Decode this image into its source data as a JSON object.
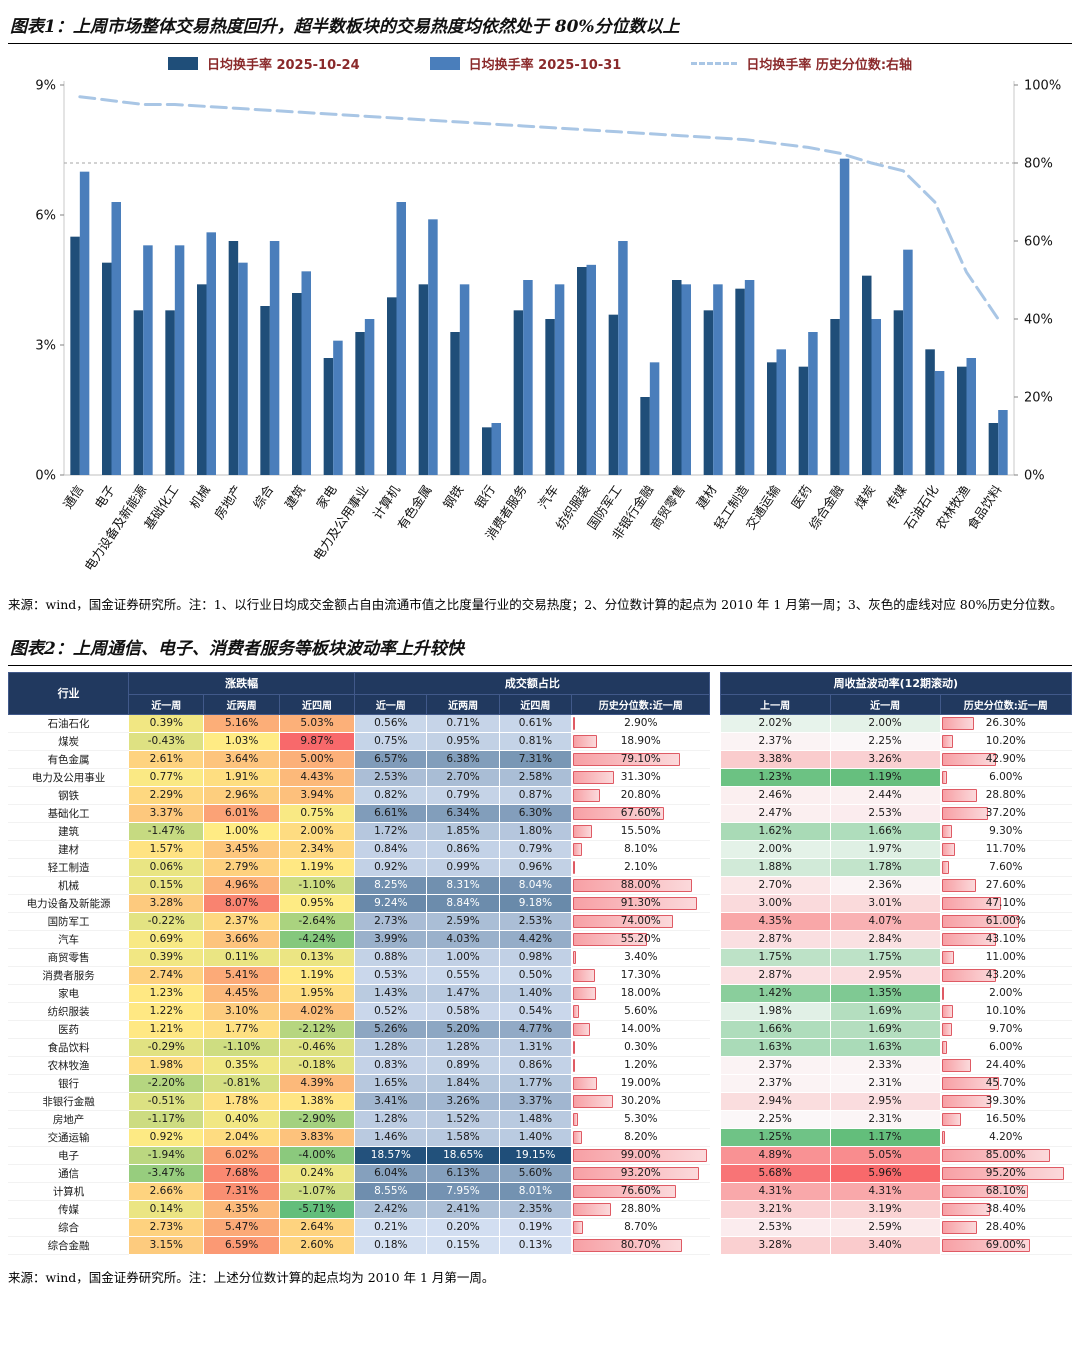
{
  "page": {
    "title1": "图表1：上周市场整体交易热度回升，超半数板块的交易热度均依然处于 80%分位数以上",
    "note1": "来源：wind，国金证券研究所。注：1、以行业日均成交金额占自由流通市值之比度量行业的交易热度；2、分位数计算的起点为 2010 年 1 月第一周；3、灰色的虚线对应 80%历史分位数。",
    "title2": "图表2：上周通信、电子、消费者服务等板块波动率上升较快",
    "note2": "来源：wind，国金证券研究所。注：上述分位数计算的起点均为 2010 年 1 月第一周。"
  },
  "colors": {
    "bar_2025_10_24": "#1F4E79",
    "bar_2025_10_31": "#4A7EBB",
    "percentile_line": "#A9C6E5",
    "reference_line": "#A6A6A6",
    "header_bg": "#21395F",
    "heat_green": "#63BE7B",
    "heat_yellow": "#FFEB84",
    "heat_red": "#F8696B",
    "heat_white": "#FBFBFC",
    "share_blue_light": "#D6E1F3",
    "share_blue_dark": "#1F4E79",
    "databar_border": "#DF5A64",
    "databar_fill": "#F7A0A5"
  },
  "chart_data": [
    {
      "type": "bar",
      "title": "上周市场整体交易热度回升",
      "categories": [
        "通信",
        "电子",
        "电力设备及新能源",
        "基础化工",
        "机械",
        "房地产",
        "综合",
        "建筑",
        "家电",
        "电力及公用事业",
        "计算机",
        "有色金属",
        "钢铁",
        "银行",
        "消费者服务",
        "汽车",
        "纺织服装",
        "国防军工",
        "非银行金融",
        "商贸零售",
        "建材",
        "轻工制造",
        "交通运输",
        "医药",
        "综合金融",
        "煤炭",
        "传媒",
        "石油石化",
        "农林牧渔",
        "食品饮料"
      ],
      "series": [
        {
          "name": "日均换手率 2025-10-24",
          "type": "bar",
          "axis": "left",
          "color": "#1F4E79",
          "values": [
            5.5,
            4.9,
            3.8,
            3.8,
            4.4,
            5.4,
            3.9,
            4.2,
            2.7,
            3.3,
            4.1,
            4.4,
            3.3,
            1.1,
            3.8,
            3.6,
            4.8,
            3.7,
            1.8,
            4.5,
            3.8,
            4.3,
            2.6,
            2.5,
            3.6,
            4.6,
            3.8,
            2.9,
            2.5,
            1.2
          ]
        },
        {
          "name": "日均换手率 2025-10-31",
          "type": "bar",
          "axis": "left",
          "color": "#4A7EBB",
          "values": [
            7.0,
            6.3,
            5.3,
            5.3,
            5.6,
            4.9,
            5.4,
            4.7,
            3.1,
            3.6,
            6.3,
            5.9,
            4.4,
            1.2,
            4.5,
            4.4,
            4.85,
            5.4,
            2.6,
            4.4,
            4.4,
            4.5,
            2.9,
            3.3,
            7.3,
            3.6,
            5.2,
            2.4,
            2.7,
            1.5
          ]
        },
        {
          "name": "日均换手率 历史分位数:右轴",
          "type": "dashed-line",
          "axis": "right",
          "color": "#A9C6E5",
          "values": [
            97,
            96,
            95,
            95,
            94.5,
            94,
            93.5,
            93,
            92.5,
            92,
            91.5,
            91,
            90.5,
            90,
            89.5,
            89,
            88.5,
            88,
            87.5,
            87,
            86.5,
            86,
            85,
            84,
            82.5,
            80,
            78,
            70,
            52,
            40
          ]
        }
      ],
      "left_axis": {
        "min": 0,
        "max": 9,
        "tick_values": [
          0,
          3,
          6,
          9
        ],
        "tick_labels": [
          "0%",
          "3%",
          "6%",
          "9%"
        ]
      },
      "right_axis": {
        "min": 0,
        "max": 100,
        "tick_values": [
          0,
          20,
          40,
          60,
          80,
          100
        ],
        "tick_labels": [
          "0%",
          "20%",
          "40%",
          "60%",
          "80%",
          "100%"
        ]
      },
      "reference_line": {
        "axis": "right",
        "value": 80
      },
      "legend_position": "top",
      "grid": false
    }
  ],
  "table": {
    "header": {
      "industry": "行业",
      "groups": [
        "涨跌幅",
        "成交额占比",
        "周收益波动率(12期滚动)"
      ],
      "sub": [
        "近一周",
        "近两周",
        "近四周",
        "近一周",
        "近两周",
        "近四周",
        "历史分位数:近一周",
        "上一周",
        "近一周",
        "历史分位数:近一周"
      ]
    },
    "rows": [
      {
        "industry": "石油石化",
        "chg": [
          0.39,
          5.16,
          5.03
        ],
        "share": [
          0.56,
          0.71,
          0.61
        ],
        "share_pct": 2.9,
        "vol": [
          2.02,
          2.0
        ],
        "vol_pct": 26.3
      },
      {
        "industry": "煤炭",
        "chg": [
          -0.43,
          1.03,
          9.87
        ],
        "share": [
          0.75,
          0.95,
          0.81
        ],
        "share_pct": 18.9,
        "vol": [
          2.37,
          2.25
        ],
        "vol_pct": 10.2
      },
      {
        "industry": "有色金属",
        "chg": [
          2.61,
          3.64,
          5.0
        ],
        "share": [
          6.57,
          6.38,
          7.31
        ],
        "share_pct": 79.1,
        "vol": [
          3.38,
          3.26
        ],
        "vol_pct": 42.9
      },
      {
        "industry": "电力及公用事业",
        "chg": [
          0.77,
          1.91,
          4.43
        ],
        "share": [
          2.53,
          2.7,
          2.58
        ],
        "share_pct": 31.3,
        "vol": [
          1.23,
          1.19
        ],
        "vol_pct": 6.0
      },
      {
        "industry": "钢铁",
        "chg": [
          2.29,
          2.96,
          3.94
        ],
        "share": [
          0.82,
          0.79,
          0.87
        ],
        "share_pct": 20.8,
        "vol": [
          2.46,
          2.44
        ],
        "vol_pct": 28.8
      },
      {
        "industry": "基础化工",
        "chg": [
          3.37,
          6.01,
          0.75
        ],
        "share": [
          6.61,
          6.34,
          6.3
        ],
        "share_pct": 67.6,
        "vol": [
          2.47,
          2.53
        ],
        "vol_pct": 37.2
      },
      {
        "industry": "建筑",
        "chg": [
          -1.47,
          1.0,
          2.0
        ],
        "share": [
          1.72,
          1.85,
          1.8
        ],
        "share_pct": 15.5,
        "vol": [
          1.62,
          1.66
        ],
        "vol_pct": 9.3
      },
      {
        "industry": "建材",
        "chg": [
          1.57,
          3.45,
          2.34
        ],
        "share": [
          0.84,
          0.86,
          0.79
        ],
        "share_pct": 8.1,
        "vol": [
          2.0,
          1.97
        ],
        "vol_pct": 11.7
      },
      {
        "industry": "轻工制造",
        "chg": [
          0.06,
          2.79,
          1.19
        ],
        "share": [
          0.92,
          0.99,
          0.96
        ],
        "share_pct": 2.1,
        "vol": [
          1.88,
          1.78
        ],
        "vol_pct": 7.6
      },
      {
        "industry": "机械",
        "chg": [
          0.15,
          4.96,
          -1.1
        ],
        "share": [
          8.25,
          8.31,
          8.04
        ],
        "share_pct": 88.0,
        "vol": [
          2.7,
          2.36
        ],
        "vol_pct": 27.6
      },
      {
        "industry": "电力设备及新能源",
        "chg": [
          3.28,
          8.07,
          0.95
        ],
        "share": [
          9.24,
          8.84,
          9.18
        ],
        "share_pct": 91.3,
        "vol": [
          3.0,
          3.01
        ],
        "vol_pct": 47.1
      },
      {
        "industry": "国防军工",
        "chg": [
          -0.22,
          2.37,
          -2.64
        ],
        "share": [
          2.73,
          2.59,
          2.53
        ],
        "share_pct": 74.0,
        "vol": [
          4.35,
          4.07
        ],
        "vol_pct": 61.0
      },
      {
        "industry": "汽车",
        "chg": [
          0.69,
          3.66,
          -4.24
        ],
        "share": [
          3.99,
          4.03,
          4.42
        ],
        "share_pct": 55.2,
        "vol": [
          2.87,
          2.84
        ],
        "vol_pct": 43.1
      },
      {
        "industry": "商贸零售",
        "chg": [
          0.39,
          0.11,
          0.13
        ],
        "share": [
          0.88,
          1.0,
          0.98
        ],
        "share_pct": 3.4,
        "vol": [
          1.75,
          1.75
        ],
        "vol_pct": 11.0
      },
      {
        "industry": "消费者服务",
        "chg": [
          2.74,
          5.41,
          1.19
        ],
        "share": [
          0.53,
          0.55,
          0.5
        ],
        "share_pct": 17.3,
        "vol": [
          2.87,
          2.95
        ],
        "vol_pct": 43.2
      },
      {
        "industry": "家电",
        "chg": [
          1.23,
          4.45,
          1.95
        ],
        "share": [
          1.43,
          1.47,
          1.4
        ],
        "share_pct": 18.0,
        "vol": [
          1.42,
          1.35
        ],
        "vol_pct": 2.0
      },
      {
        "industry": "纺织服装",
        "chg": [
          1.22,
          3.1,
          4.02
        ],
        "share": [
          0.52,
          0.58,
          0.54
        ],
        "share_pct": 5.6,
        "vol": [
          1.98,
          1.69
        ],
        "vol_pct": 10.1
      },
      {
        "industry": "医药",
        "chg": [
          1.21,
          1.77,
          -2.12
        ],
        "share": [
          5.26,
          5.2,
          4.77
        ],
        "share_pct": 14.0,
        "vol": [
          1.66,
          1.69
        ],
        "vol_pct": 9.7
      },
      {
        "industry": "食品饮料",
        "chg": [
          -0.29,
          -1.1,
          -0.46
        ],
        "share": [
          1.28,
          1.28,
          1.31
        ],
        "share_pct": 0.3,
        "vol": [
          1.63,
          1.63
        ],
        "vol_pct": 6.0
      },
      {
        "industry": "农林牧渔",
        "chg": [
          1.98,
          0.35,
          -0.18
        ],
        "share": [
          0.83,
          0.89,
          0.86
        ],
        "share_pct": 1.2,
        "vol": [
          2.37,
          2.33
        ],
        "vol_pct": 24.4
      },
      {
        "industry": "银行",
        "chg": [
          -2.2,
          -0.81,
          4.39
        ],
        "share": [
          1.65,
          1.84,
          1.77
        ],
        "share_pct": 19.0,
        "vol": [
          2.37,
          2.31
        ],
        "vol_pct": 45.7
      },
      {
        "industry": "非银行金融",
        "chg": [
          -0.51,
          1.78,
          1.38
        ],
        "share": [
          3.41,
          3.26,
          3.37
        ],
        "share_pct": 30.2,
        "vol": [
          2.94,
          2.95
        ],
        "vol_pct": 39.3
      },
      {
        "industry": "房地产",
        "chg": [
          -1.17,
          0.4,
          -2.9
        ],
        "share": [
          1.28,
          1.52,
          1.48
        ],
        "share_pct": 5.3,
        "vol": [
          2.25,
          2.31
        ],
        "vol_pct": 16.5
      },
      {
        "industry": "交通运输",
        "chg": [
          0.92,
          2.04,
          3.83
        ],
        "share": [
          1.46,
          1.58,
          1.4
        ],
        "share_pct": 8.2,
        "vol": [
          1.25,
          1.17
        ],
        "vol_pct": 4.2
      },
      {
        "industry": "电子",
        "chg": [
          -1.94,
          6.02,
          -4.0
        ],
        "share": [
          18.57,
          18.65,
          19.15
        ],
        "share_pct": 99.0,
        "vol": [
          4.89,
          5.05
        ],
        "vol_pct": 85.0
      },
      {
        "industry": "通信",
        "chg": [
          -3.47,
          7.68,
          0.24
        ],
        "share": [
          6.04,
          6.13,
          5.6
        ],
        "share_pct": 93.2,
        "vol": [
          5.68,
          5.96
        ],
        "vol_pct": 95.2
      },
      {
        "industry": "计算机",
        "chg": [
          2.66,
          7.31,
          -1.07
        ],
        "share": [
          8.55,
          7.95,
          8.01
        ],
        "share_pct": 76.6,
        "vol": [
          4.31,
          4.31
        ],
        "vol_pct": 68.1
      },
      {
        "industry": "传媒",
        "chg": [
          0.14,
          4.35,
          -5.71
        ],
        "share": [
          2.42,
          2.41,
          2.35
        ],
        "share_pct": 28.8,
        "vol": [
          3.21,
          3.19
        ],
        "vol_pct": 38.4
      },
      {
        "industry": "综合",
        "chg": [
          2.73,
          5.47,
          2.64
        ],
        "share": [
          0.21,
          0.2,
          0.19
        ],
        "share_pct": 8.7,
        "vol": [
          2.53,
          2.59
        ],
        "vol_pct": 28.4
      },
      {
        "industry": "综合金融",
        "chg": [
          3.15,
          6.59,
          2.6
        ],
        "share": [
          0.18,
          0.15,
          0.13
        ],
        "share_pct": 80.7,
        "vol": [
          3.28,
          3.4
        ],
        "vol_pct": 69.0
      }
    ]
  }
}
